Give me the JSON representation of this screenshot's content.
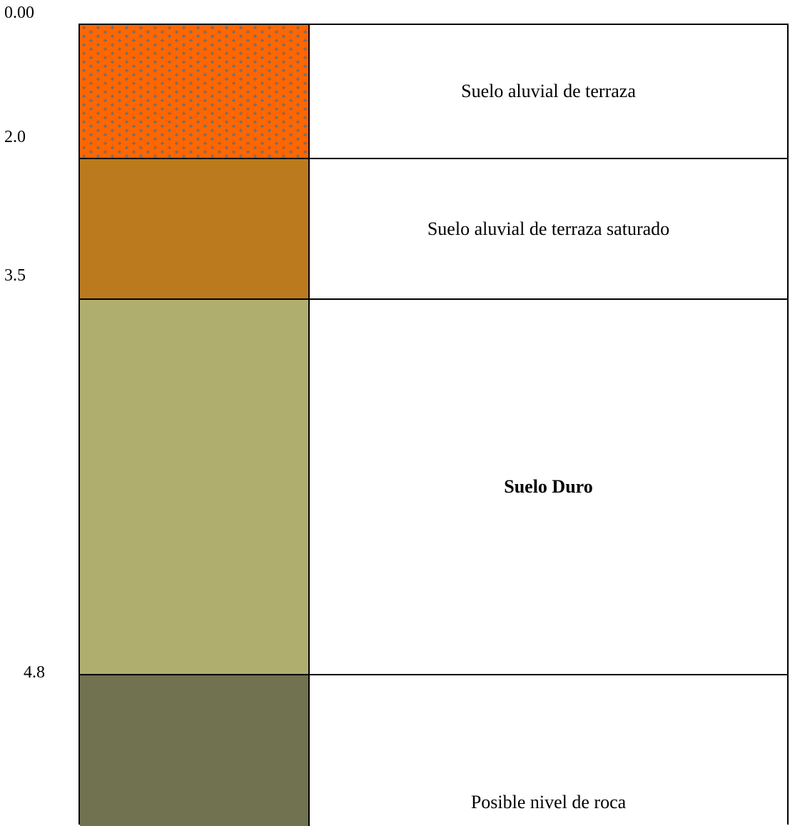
{
  "depth_labels": [
    "0.00",
    "2.0",
    "3.5",
    "4.8"
  ],
  "layers": [
    {
      "description": "Suelo aluvial de terraza",
      "color": "#FF6600",
      "pattern": "gray-cross-dots",
      "bold": false
    },
    {
      "description": "Suelo aluvial de terraza saturado",
      "color": "#BC7A1E",
      "pattern": "solid",
      "bold": false
    },
    {
      "description": "Suelo Duro",
      "color": "#AFAE6F",
      "pattern": "solid",
      "bold": true
    },
    {
      "description": "Posible nivel de roca",
      "color": "#707250",
      "pattern": "solid",
      "bold": false
    }
  ]
}
